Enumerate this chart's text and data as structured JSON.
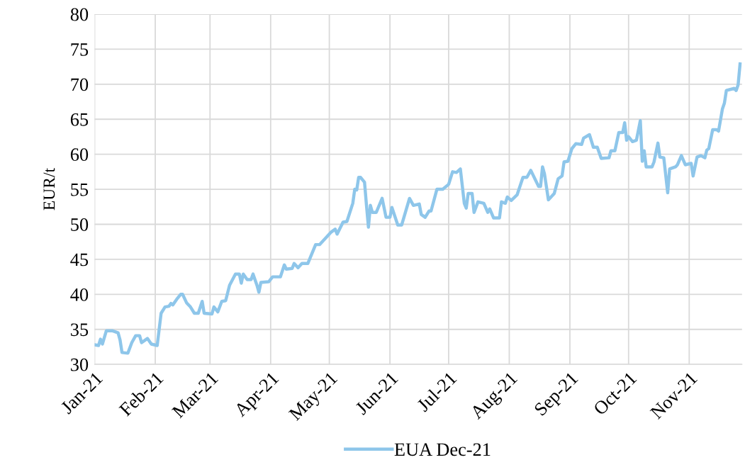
{
  "chart_data": {
    "type": "line",
    "ylabel": "EUR/t",
    "xlim": [
      "2021-01-01",
      "2021-11-28"
    ],
    "xticks": [
      {
        "value": "2021-01-01",
        "label": "Jan-21"
      },
      {
        "value": "2021-02-01",
        "label": "Feb-21"
      },
      {
        "value": "2021-03-01",
        "label": "Mar-21"
      },
      {
        "value": "2021-04-01",
        "label": "Apr-21"
      },
      {
        "value": "2021-05-01",
        "label": "May-21"
      },
      {
        "value": "2021-06-01",
        "label": "Jun-21"
      },
      {
        "value": "2021-07-01",
        "label": "Jul-21"
      },
      {
        "value": "2021-08-01",
        "label": "Aug-21"
      },
      {
        "value": "2021-09-01",
        "label": "Sep-21"
      },
      {
        "value": "2021-10-01",
        "label": "Oct-21"
      },
      {
        "value": "2021-11-01",
        "label": "Nov-21"
      }
    ],
    "ylim": [
      30,
      80
    ],
    "yticks": [
      30,
      35,
      40,
      45,
      50,
      55,
      60,
      65,
      70,
      75,
      80
    ],
    "grid": true,
    "legend": "bottom",
    "marker": "none",
    "line_style": "solid",
    "series": [
      {
        "name": "EUA Dec-21",
        "color": "#8ec6ea",
        "x": [
          "2021-01-01",
          "2021-01-03",
          "2021-01-04",
          "2021-01-05",
          "2021-01-07",
          "2021-01-10",
          "2021-01-13",
          "2021-01-14",
          "2021-01-15",
          "2021-01-18",
          "2021-01-20",
          "2021-01-22",
          "2021-01-24",
          "2021-01-25",
          "2021-01-28",
          "2021-01-30",
          "2021-02-02",
          "2021-02-04",
          "2021-02-06",
          "2021-02-08",
          "2021-02-09",
          "2021-02-10",
          "2021-02-12",
          "2021-02-14",
          "2021-02-15",
          "2021-02-17",
          "2021-02-19",
          "2021-02-21",
          "2021-02-23",
          "2021-02-25",
          "2021-02-26",
          "2021-03-02",
          "2021-03-03",
          "2021-03-05",
          "2021-03-07",
          "2021-03-09",
          "2021-03-11",
          "2021-03-14",
          "2021-03-16",
          "2021-03-17",
          "2021-03-18",
          "2021-03-20",
          "2021-03-22",
          "2021-03-23",
          "2021-03-25",
          "2021-03-26",
          "2021-03-27",
          "2021-03-31",
          "2021-04-02",
          "2021-04-06",
          "2021-04-08",
          "2021-04-09",
          "2021-04-12",
          "2021-04-13",
          "2021-04-15",
          "2021-04-17",
          "2021-04-20",
          "2021-04-24",
          "2021-04-26",
          "2021-04-30",
          "2021-05-02",
          "2021-05-04",
          "2021-05-05",
          "2021-05-08",
          "2021-05-10",
          "2021-05-13",
          "2021-05-14",
          "2021-05-15",
          "2021-05-16",
          "2021-05-17",
          "2021-05-19",
          "2021-05-20",
          "2021-05-21",
          "2021-05-22",
          "2021-05-23",
          "2021-05-25",
          "2021-05-28",
          "2021-05-30",
          "2021-06-01",
          "2021-06-02",
          "2021-06-05",
          "2021-06-07",
          "2021-06-11",
          "2021-06-13",
          "2021-06-16",
          "2021-06-17",
          "2021-06-19",
          "2021-06-21",
          "2021-06-22",
          "2021-06-25",
          "2021-06-28",
          "2021-07-01",
          "2021-07-03",
          "2021-07-05",
          "2021-07-07",
          "2021-07-09",
          "2021-07-10",
          "2021-07-11",
          "2021-07-13",
          "2021-07-14",
          "2021-07-16",
          "2021-07-19",
          "2021-07-21",
          "2021-07-22",
          "2021-07-24",
          "2021-07-27",
          "2021-07-28",
          "2021-07-30",
          "2021-07-31",
          "2021-08-02",
          "2021-08-05",
          "2021-08-08",
          "2021-08-10",
          "2021-08-12",
          "2021-08-16",
          "2021-08-17",
          "2021-08-18",
          "2021-08-19",
          "2021-08-21",
          "2021-08-24",
          "2021-08-26",
          "2021-08-28",
          "2021-08-29",
          "2021-08-31",
          "2021-09-02",
          "2021-09-04",
          "2021-09-07",
          "2021-09-08",
          "2021-09-11",
          "2021-09-13",
          "2021-09-15",
          "2021-09-17",
          "2021-09-21",
          "2021-09-22",
          "2021-09-24",
          "2021-09-26",
          "2021-09-28",
          "2021-09-29",
          "2021-09-30",
          "2021-10-01",
          "2021-10-03",
          "2021-10-05",
          "2021-10-07",
          "2021-10-08",
          "2021-10-09",
          "2021-10-10",
          "2021-10-13",
          "2021-10-14",
          "2021-10-16",
          "2021-10-17",
          "2021-10-19",
          "2021-10-21",
          "2021-10-22",
          "2021-10-25",
          "2021-10-26",
          "2021-10-28",
          "2021-10-30",
          "2021-11-02",
          "2021-11-03",
          "2021-11-05",
          "2021-11-07",
          "2021-11-09",
          "2021-11-10",
          "2021-11-11",
          "2021-11-13",
          "2021-11-15",
          "2021-11-16",
          "2021-11-18",
          "2021-11-19",
          "2021-11-20",
          "2021-11-24",
          "2021-11-25",
          "2021-11-26",
          "2021-11-27"
        ],
        "values": [
          32.8,
          32.7,
          33.6,
          32.9,
          34.8,
          34.8,
          34.5,
          33.5,
          31.7,
          31.6,
          33.1,
          34.1,
          34.1,
          33.1,
          33.7,
          32.9,
          32.7,
          37.3,
          38.2,
          38.3,
          38.7,
          38.5,
          39.3,
          40.0,
          40.0,
          38.8,
          38.2,
          37.3,
          37.3,
          39.0,
          37.3,
          37.2,
          38.2,
          37.5,
          39.0,
          39.1,
          41.3,
          42.9,
          42.9,
          41.6,
          42.9,
          42.1,
          42.1,
          42.9,
          41.3,
          40.3,
          41.7,
          41.8,
          42.5,
          42.5,
          44.2,
          43.6,
          43.7,
          44.4,
          43.8,
          44.4,
          44.4,
          47.1,
          47.1,
          48.3,
          48.9,
          49.3,
          48.6,
          50.3,
          50.4,
          53.0,
          55.0,
          54.9,
          56.7,
          56.7,
          56.0,
          52.7,
          49.6,
          52.7,
          51.7,
          51.7,
          53.7,
          51.0,
          51.0,
          52.4,
          49.9,
          49.9,
          53.7,
          52.7,
          52.9,
          51.4,
          51.0,
          51.9,
          51.9,
          55.0,
          55.0,
          55.7,
          57.5,
          57.4,
          57.9,
          53.0,
          52.3,
          54.4,
          54.4,
          51.7,
          53.2,
          53.0,
          51.7,
          52.2,
          50.9,
          50.9,
          53.2,
          53.0,
          53.9,
          53.4,
          54.2,
          56.7,
          56.7,
          57.7,
          55.4,
          55.4,
          58.2,
          57.2,
          53.5,
          54.4,
          56.5,
          56.9,
          58.9,
          59.0,
          60.8,
          61.5,
          61.4,
          62.3,
          62.8,
          61.0,
          61.0,
          59.4,
          59.5,
          60.5,
          60.5,
          63.1,
          63.1,
          64.5,
          62.0,
          62.5,
          61.8,
          62.0,
          64.8,
          59.0,
          60.5,
          58.2,
          58.2,
          58.9,
          61.6,
          59.6,
          59.5,
          54.5,
          57.9,
          58.2,
          58.5,
          59.8,
          58.5,
          58.7,
          56.9,
          59.6,
          59.8,
          59.5,
          60.6,
          60.8,
          63.5,
          63.5,
          63.3,
          66.5,
          67.3,
          69.1,
          69.4,
          69.1,
          69.9,
          72.9
        ]
      }
    ]
  }
}
